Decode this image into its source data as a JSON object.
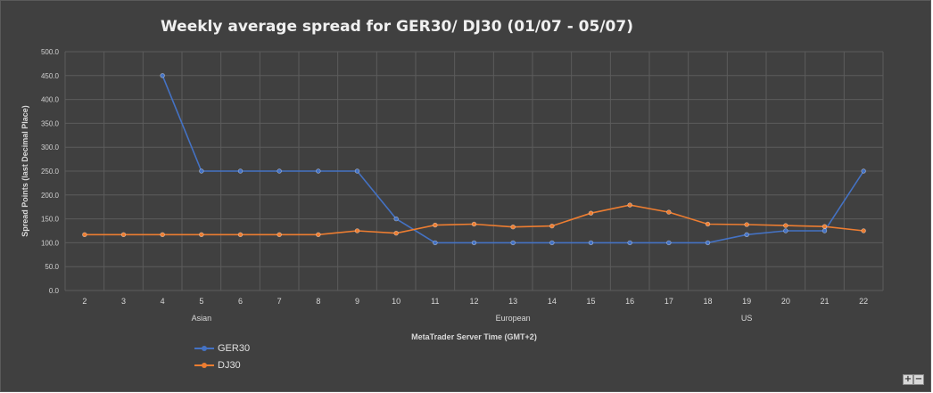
{
  "chart_data": {
    "type": "line",
    "title": "Weekly average spread for GER30/ DJ30 (01/07 - 05/07)",
    "xlabel": "MetaTrader Server Time (GMT+2)",
    "ylabel": "Spread Points  (last Decimal Place)",
    "categories": [
      "2",
      "3",
      "4",
      "5",
      "6",
      "7",
      "8",
      "9",
      "10",
      "11",
      "12",
      "13",
      "14",
      "15",
      "16",
      "17",
      "18",
      "19",
      "20",
      "21",
      "22"
    ],
    "session_labels": [
      {
        "label": "Asian",
        "at": "5"
      },
      {
        "label": "European",
        "at": "13"
      },
      {
        "label": "US",
        "at": "19"
      }
    ],
    "ylim": [
      0,
      500
    ],
    "yticks": [
      "0.0",
      "50.0",
      "100.0",
      "150.0",
      "200.0",
      "250.0",
      "300.0",
      "350.0",
      "400.0",
      "450.0",
      "500.0"
    ],
    "grid": true,
    "legend_position": "bottom-left",
    "series": [
      {
        "name": "GER30",
        "color": "#4472c4",
        "values": [
          null,
          null,
          450,
          250,
          250,
          250,
          250,
          250,
          150,
          100,
          100,
          100,
          100,
          100,
          100,
          100,
          100,
          117,
          125,
          125,
          250
        ]
      },
      {
        "name": "DJ30",
        "color": "#ed7d31",
        "values": [
          117,
          117,
          117,
          117,
          117,
          117,
          117,
          125,
          120,
          137,
          139,
          133,
          135,
          162,
          179,
          164,
          139,
          138,
          136,
          134,
          125
        ]
      }
    ]
  },
  "controls": {
    "zoom_in": "+",
    "zoom_out": "−"
  }
}
